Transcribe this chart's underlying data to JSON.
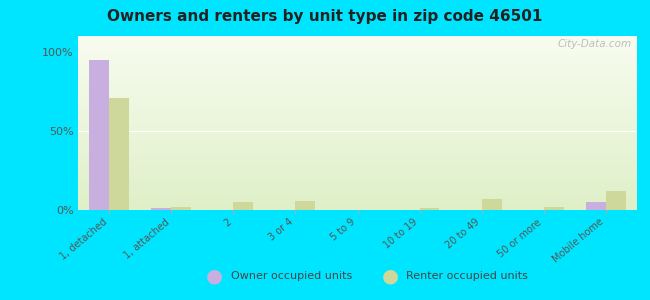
{
  "title": "Owners and renters by unit type in zip code 46501",
  "categories": [
    "1, detached",
    "1, attached",
    "2",
    "3 or 4",
    "5 to 9",
    "10 to 19",
    "20 to 49",
    "50 or more",
    "Mobile home"
  ],
  "owner_values": [
    95,
    1,
    0,
    0,
    0,
    0,
    0,
    0,
    5
  ],
  "renter_values": [
    71,
    2,
    5,
    6,
    0,
    1,
    7,
    2,
    12
  ],
  "owner_color": "#c9aee0",
  "renter_color": "#cdd89a",
  "background_color": "#00e5ff",
  "plot_bg_color": "#eef7e0",
  "yticks": [
    0,
    50,
    100
  ],
  "ylim": [
    0,
    110
  ],
  "watermark": "City-Data.com",
  "legend_owner": "Owner occupied units",
  "legend_renter": "Renter occupied units",
  "bar_width": 0.32
}
